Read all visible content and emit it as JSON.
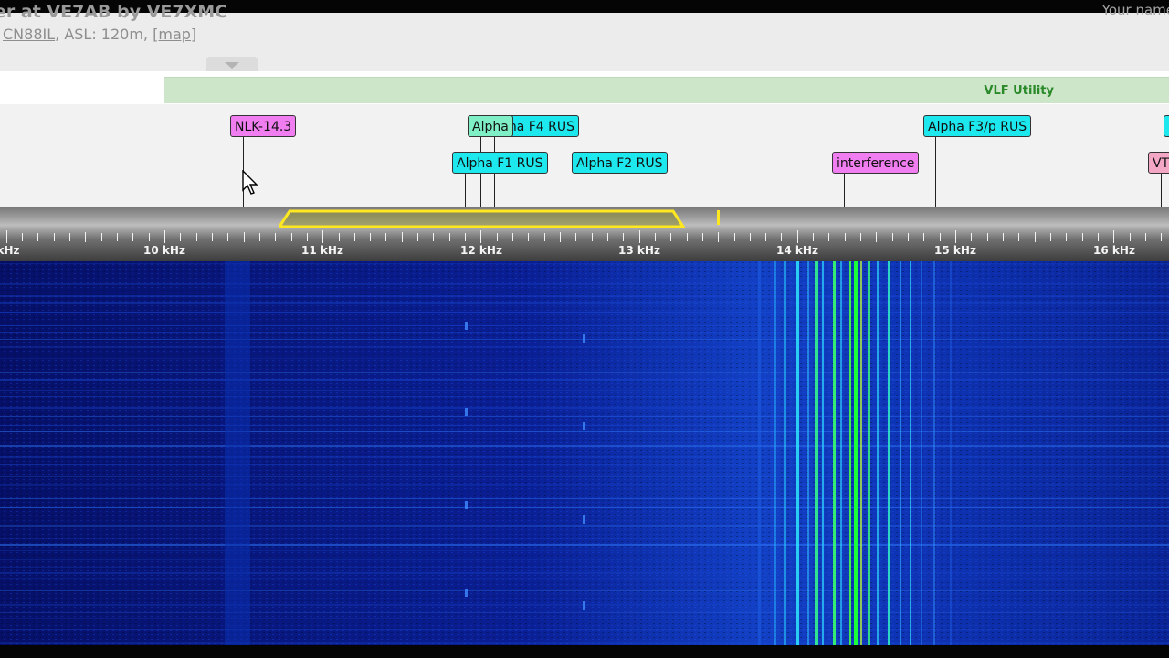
{
  "header": {
    "receiver_title": "er at VE7AB by VE7XMC",
    "right_label": "Your name",
    "locator": "CN88IL",
    "altitude_text": ", ASL: 120m, ",
    "map_link": "[map]"
  },
  "band_bar": {
    "bands": [
      {
        "label": "VLF Utility",
        "color": "#cde6c9"
      }
    ]
  },
  "bookmarks": [
    {
      "label": "NLK-14.3",
      "color": "#f07ef0"
    },
    {
      "label": "Alpha F4 RUS",
      "color": "#1de8ee"
    },
    {
      "label": "Alpha",
      "color": "#7ff0c6"
    },
    {
      "label": "Alpha F3/p RUS",
      "color": "#1de8ee"
    },
    {
      "label": "Alpha F1 RUS",
      "color": "#1de8ee"
    },
    {
      "label": "Alpha F2 RUS",
      "color": "#1de8ee"
    },
    {
      "label": "interference",
      "color": "#f07ef0"
    },
    {
      "label": "VT",
      "color": "#f4a7c4"
    }
  ],
  "scale": {
    "unit_label": "kHz",
    "labels": [
      "10 kHz",
      "11 kHz",
      "12 kHz",
      "13 kHz",
      "14 kHz",
      "15 kHz",
      "16 kHz"
    ],
    "passband_color": "#ffe81f"
  },
  "waterfall": {
    "background_color": "#05157a",
    "highlight_color": "#19ff3a"
  }
}
